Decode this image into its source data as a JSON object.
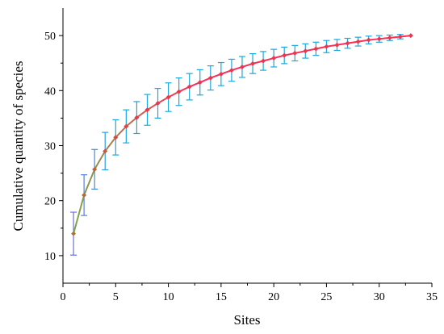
{
  "chart_data": {
    "type": "line",
    "title": "",
    "xlabel": "Sites",
    "ylabel": "Cumulative quantity of species",
    "xlim": [
      0,
      35
    ],
    "ylim": [
      5,
      55
    ],
    "xticks": [
      0,
      5,
      10,
      15,
      20,
      25,
      30,
      35
    ],
    "yticks": [
      10,
      20,
      30,
      40,
      50
    ],
    "grid": false,
    "legend": "none",
    "colors": {
      "line_start": "#7aa84a",
      "line_end": "#ff2d5a",
      "marker_start": "#a8782e",
      "marker_end": "#e8384f",
      "errorbar_start": "#6a6fe0",
      "errorbar_end": "#1aa8e0",
      "axis": "#000000"
    },
    "series": [
      {
        "x": [
          1,
          2,
          3,
          4,
          5,
          6,
          7,
          8,
          9,
          10,
          11,
          12,
          13,
          14,
          15,
          16,
          17,
          18,
          19,
          20,
          21,
          22,
          23,
          24,
          25,
          26,
          27,
          28,
          29,
          30,
          31,
          32,
          33
        ],
        "y": [
          14.0,
          21.0,
          25.7,
          29.0,
          31.5,
          33.5,
          35.1,
          36.5,
          37.7,
          38.8,
          39.8,
          40.7,
          41.5,
          42.3,
          43.0,
          43.7,
          44.3,
          44.9,
          45.4,
          45.9,
          46.4,
          46.8,
          47.2,
          47.6,
          48.0,
          48.3,
          48.6,
          48.9,
          49.2,
          49.4,
          49.6,
          49.8,
          50.0
        ],
        "err": [
          3.9,
          3.7,
          3.6,
          3.4,
          3.2,
          3.0,
          2.9,
          2.8,
          2.7,
          2.6,
          2.5,
          2.4,
          2.3,
          2.2,
          2.1,
          2.0,
          1.9,
          1.8,
          1.7,
          1.6,
          1.5,
          1.4,
          1.3,
          1.2,
          1.1,
          1.0,
          0.9,
          0.8,
          0.7,
          0.6,
          0.5,
          0.4,
          0.0
        ]
      }
    ]
  }
}
